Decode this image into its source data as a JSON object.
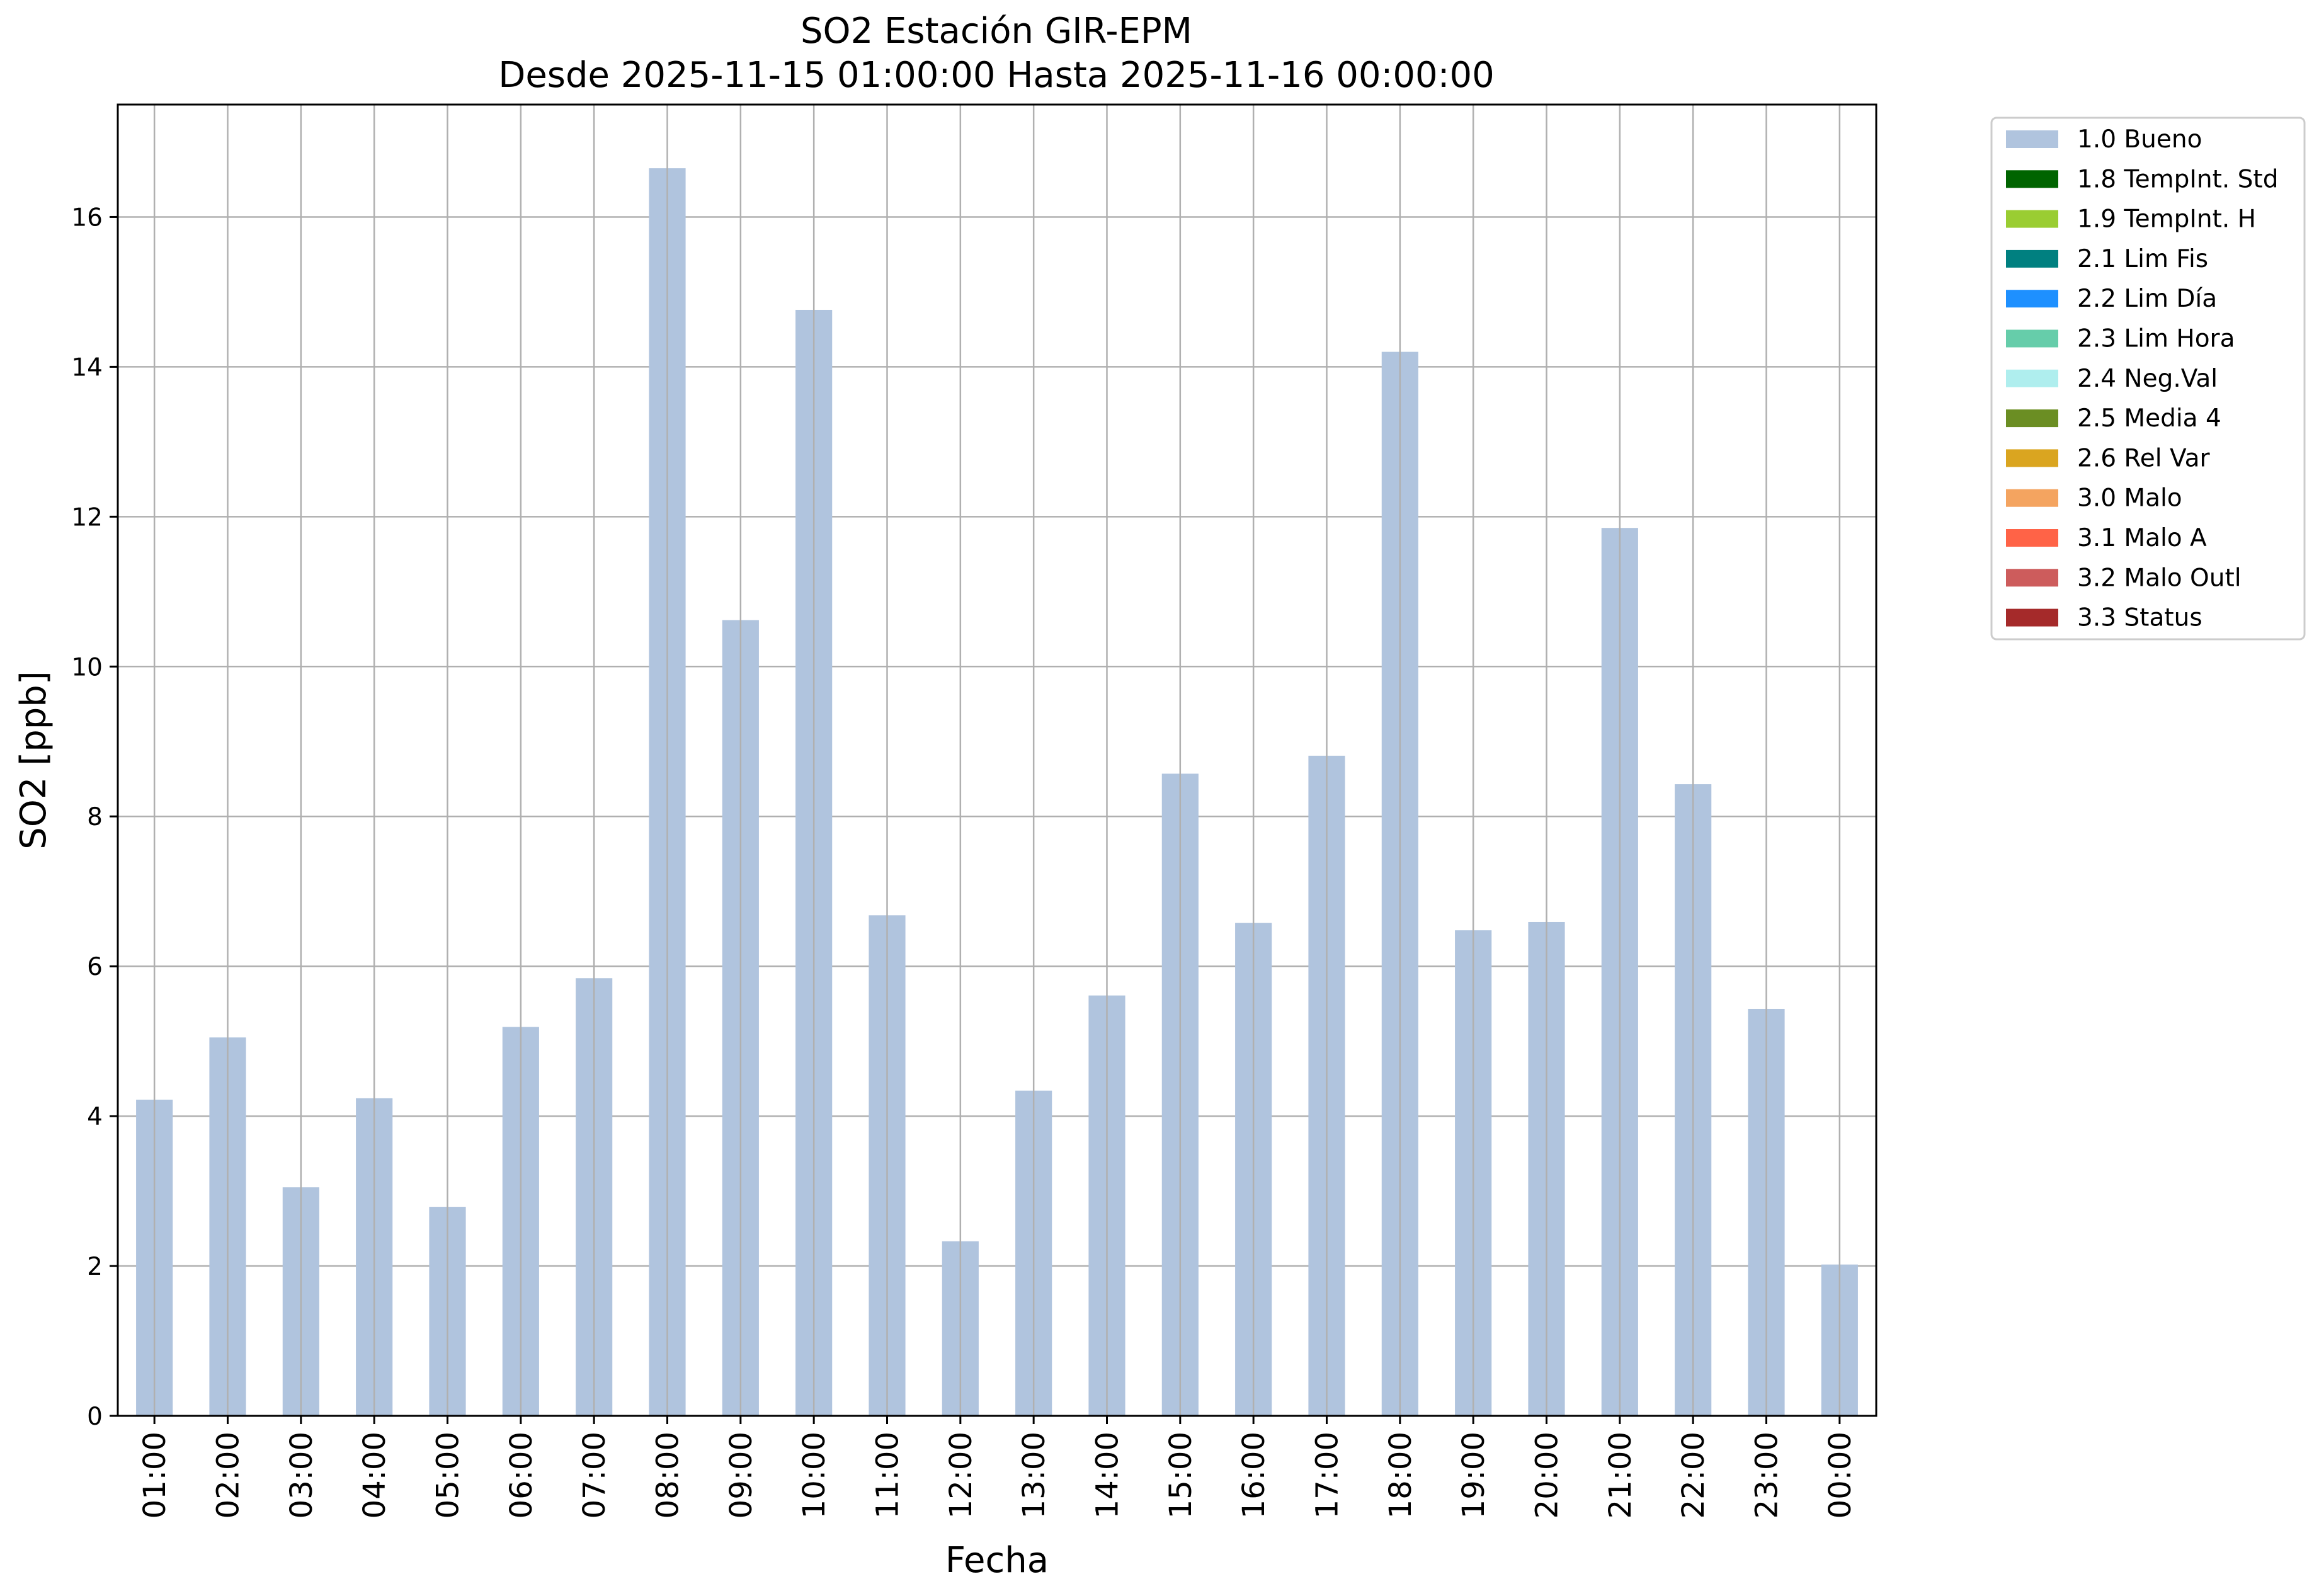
{
  "chart_data": {
    "type": "bar",
    "title": "SO2 Estación GIR-EPM",
    "subtitle": "Desde 2025-11-15 01:00:00 Hasta 2025-11-16 00:00:00",
    "xlabel": "Fecha",
    "ylabel": "SO2 [ppb]",
    "ylim": [
      0,
      17.5
    ],
    "yticks": [
      0,
      2,
      4,
      6,
      8,
      10,
      12,
      14,
      16
    ],
    "grid": true,
    "legend_position": "outside-top-right",
    "categories": [
      "01:00",
      "02:00",
      "03:00",
      "04:00",
      "05:00",
      "06:00",
      "07:00",
      "08:00",
      "09:00",
      "10:00",
      "11:00",
      "12:00",
      "13:00",
      "14:00",
      "15:00",
      "16:00",
      "17:00",
      "18:00",
      "19:00",
      "20:00",
      "21:00",
      "22:00",
      "23:00",
      "00:00"
    ],
    "series": [
      {
        "name": "1.0 Bueno",
        "color": "#b0c4de",
        "values": [
          4.22,
          5.05,
          3.05,
          4.24,
          2.79,
          5.19,
          5.84,
          16.65,
          10.62,
          14.76,
          6.68,
          2.33,
          4.34,
          5.61,
          8.57,
          6.58,
          8.81,
          14.2,
          6.48,
          6.59,
          11.85,
          8.43,
          5.43,
          2.02
        ]
      }
    ],
    "legend": [
      {
        "label": "1.0 Bueno",
        "color": "#b0c4de"
      },
      {
        "label": "1.8 TempInt. Std",
        "color": "#006400"
      },
      {
        "label": "1.9 TempInt. H",
        "color": "#9acd32"
      },
      {
        "label": "2.1 Lim Fis",
        "color": "#008080"
      },
      {
        "label": "2.2 Lim Día",
        "color": "#1e90ff"
      },
      {
        "label": "2.3 Lim Hora",
        "color": "#66cdaa"
      },
      {
        "label": "2.4 Neg.Val",
        "color": "#afeeee"
      },
      {
        "label": "2.5 Media 4",
        "color": "#6b8e23"
      },
      {
        "label": "2.6 Rel Var",
        "color": "#daa520"
      },
      {
        "label": "3.0 Malo",
        "color": "#f4a460"
      },
      {
        "label": "3.1 Malo A",
        "color": "#ff6347"
      },
      {
        "label": "3.2 Malo Outl",
        "color": "#cd5c5c"
      },
      {
        "label": "3.3 Status",
        "color": "#a52a2a"
      }
    ]
  }
}
